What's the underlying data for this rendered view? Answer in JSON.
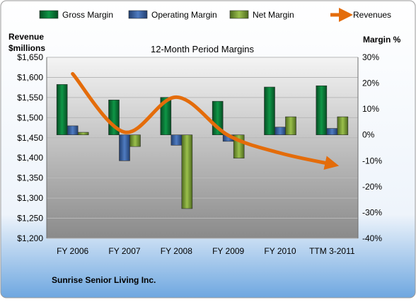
{
  "chart_data": {
    "type": "bar",
    "title": "12-Month Period Margins",
    "company": "Sunrise Senior Living Inc.",
    "categories": [
      "FY 2006",
      "FY 2007",
      "FY 2008",
      "FY 2009",
      "FY 2010",
      "TTM 3-2011"
    ],
    "left_axis": {
      "label_line1": "Revenue",
      "label_line2": "$millions",
      "range": [
        1200,
        1650
      ],
      "ticks": [
        "$1,200",
        "$1,250",
        "$1,300",
        "$1,350",
        "$1,400",
        "$1,450",
        "$1,500",
        "$1,550",
        "$1,600",
        "$1,650"
      ]
    },
    "right_axis": {
      "label": "Margin %",
      "range": [
        -40,
        30
      ],
      "ticks": [
        "30%",
        "20%",
        "10%",
        "0%",
        "-10%",
        "-20%",
        "-30%",
        "-40%"
      ]
    },
    "grid": true,
    "legend_position": "top",
    "series": [
      {
        "name": "Gross Margin",
        "type": "bar",
        "axis": "right",
        "color": "#0b7a3a",
        "values": [
          19.5,
          13.5,
          14.5,
          13,
          18.5,
          19
        ]
      },
      {
        "name": "Operating Margin",
        "type": "bar",
        "axis": "right",
        "color": "#3c66a8",
        "values": [
          3.5,
          -10,
          -4,
          -2.5,
          3,
          2.5
        ]
      },
      {
        "name": "Net Margin",
        "type": "bar",
        "axis": "right",
        "color": "#7fa03c",
        "values": [
          1,
          -4.5,
          -28.5,
          -9,
          7,
          7
        ]
      },
      {
        "name": "Revenues",
        "type": "line",
        "axis": "left",
        "color": "#e46c0a",
        "values": [
          1609,
          1464,
          1551,
          1456,
          1412,
          1384
        ]
      }
    ]
  }
}
